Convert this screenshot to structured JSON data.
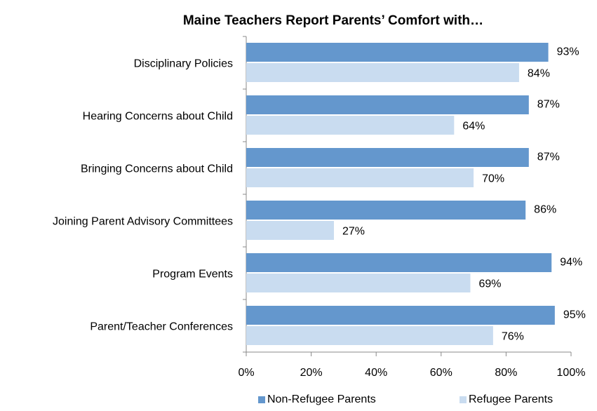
{
  "chart_data": {
    "type": "bar",
    "orientation": "horizontal",
    "title": "Maine Teachers Report Parents’ Comfort with…",
    "categories": [
      "Disciplinary Policies",
      "Hearing Concerns about Child",
      "Bringing Concerns about Child",
      "Joining Parent Advisory Committees",
      "Program Events",
      "Parent/Teacher Conferences"
    ],
    "series": [
      {
        "name": "Non-Refugee Parents",
        "color": "#6497cd",
        "values": [
          93,
          87,
          87,
          86,
          94,
          95
        ],
        "value_labels": [
          "93%",
          "87%",
          "87%",
          "86%",
          "94%",
          "95%"
        ]
      },
      {
        "name": "Refugee Parents",
        "color": "#c9dcf0",
        "values": [
          84,
          64,
          70,
          27,
          69,
          76
        ],
        "value_labels": [
          "84%",
          "64%",
          "70%",
          "27%",
          "69%",
          "76%"
        ]
      }
    ],
    "xlim": [
      0,
      100
    ],
    "xticks": [
      {
        "value": 0,
        "label": "0%"
      },
      {
        "value": 20,
        "label": "20%"
      },
      {
        "value": 40,
        "label": "40%"
      },
      {
        "value": 60,
        "label": "60%"
      },
      {
        "value": 80,
        "label": "80%"
      },
      {
        "value": 100,
        "label": "100%"
      }
    ],
    "legend": "bottom"
  }
}
